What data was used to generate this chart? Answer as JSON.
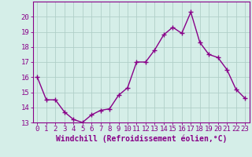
{
  "x": [
    0,
    1,
    2,
    3,
    4,
    5,
    6,
    7,
    8,
    9,
    10,
    11,
    12,
    13,
    14,
    15,
    16,
    17,
    18,
    19,
    20,
    21,
    22,
    23
  ],
  "y": [
    16.0,
    14.5,
    14.5,
    13.7,
    13.2,
    13.0,
    13.5,
    13.8,
    13.9,
    14.8,
    15.3,
    17.0,
    17.0,
    17.8,
    18.8,
    19.3,
    18.9,
    20.3,
    18.3,
    17.5,
    17.3,
    16.5,
    15.2,
    14.6
  ],
  "line_color": "#880088",
  "marker": "+",
  "marker_size": 4,
  "marker_lw": 1.0,
  "bg_color": "#d5eee8",
  "grid_color": "#b0cfc8",
  "xlabel": "Windchill (Refroidissement éolien,°C)",
  "xlabel_color": "#880088",
  "tick_color": "#880088",
  "axis_color": "#880088",
  "ylim_min": 13,
  "ylim_max": 21,
  "xlim_min": -0.5,
  "xlim_max": 23.5,
  "yticks": [
    13,
    14,
    15,
    16,
    17,
    18,
    19,
    20
  ],
  "xticks": [
    0,
    1,
    2,
    3,
    4,
    5,
    6,
    7,
    8,
    9,
    10,
    11,
    12,
    13,
    14,
    15,
    16,
    17,
    18,
    19,
    20,
    21,
    22,
    23
  ],
  "line_width": 1.0,
  "tick_fontsize": 6.5,
  "xlabel_fontsize": 7.0
}
